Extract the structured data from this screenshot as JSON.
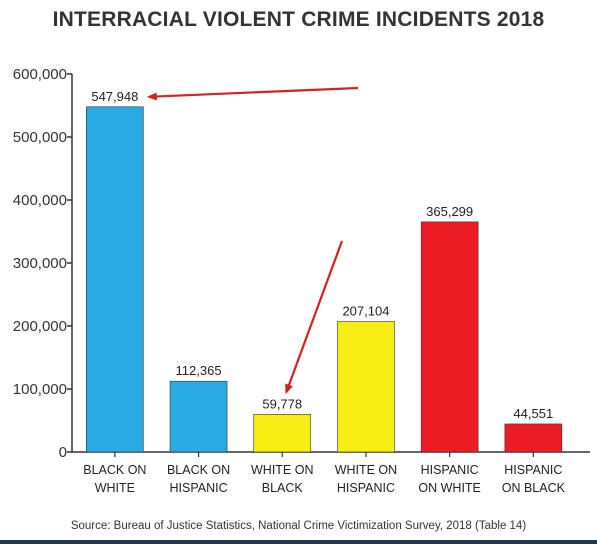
{
  "chart_data": {
    "type": "bar",
    "title": "INTERRACIAL VIOLENT CRIME INCIDENTS 2018",
    "categories": [
      [
        "BLACK ON",
        "WHITE"
      ],
      [
        "BLACK ON",
        "HISPANIC"
      ],
      [
        "WHITE ON",
        "BLACK"
      ],
      [
        "WHITE ON",
        "HISPANIC"
      ],
      [
        "HISPANIC",
        "ON WHITE"
      ],
      [
        "HISPANIC",
        "ON BLACK"
      ]
    ],
    "values": [
      547948,
      112365,
      59778,
      207104,
      365299,
      44551
    ],
    "value_labels": [
      "547,948",
      "112,365",
      "59,778",
      "207,104",
      "365,299",
      "44,551"
    ],
    "bar_colors": [
      "#2aaae2",
      "#2aaae2",
      "#f7ec13",
      "#f7ec13",
      "#ed1c24",
      "#ed1c24"
    ],
    "ylim": [
      0,
      600000
    ],
    "yticks": [
      0,
      100000,
      200000,
      300000,
      400000,
      500000,
      600000
    ],
    "ytick_labels": [
      "0",
      "100,000",
      "200,000",
      "300,000",
      "400,000",
      "500,000",
      "600,000"
    ],
    "grid": false,
    "annotations": [
      {
        "type": "arrow",
        "points_to": "BLACK ON WHITE",
        "color": "#d42020"
      },
      {
        "type": "arrow",
        "points_to": "WHITE ON BLACK",
        "color": "#d42020"
      }
    ]
  },
  "source": "Source: Bureau of Justice Statistics, National Crime Victimization Survey, 2018 (Table 14)"
}
